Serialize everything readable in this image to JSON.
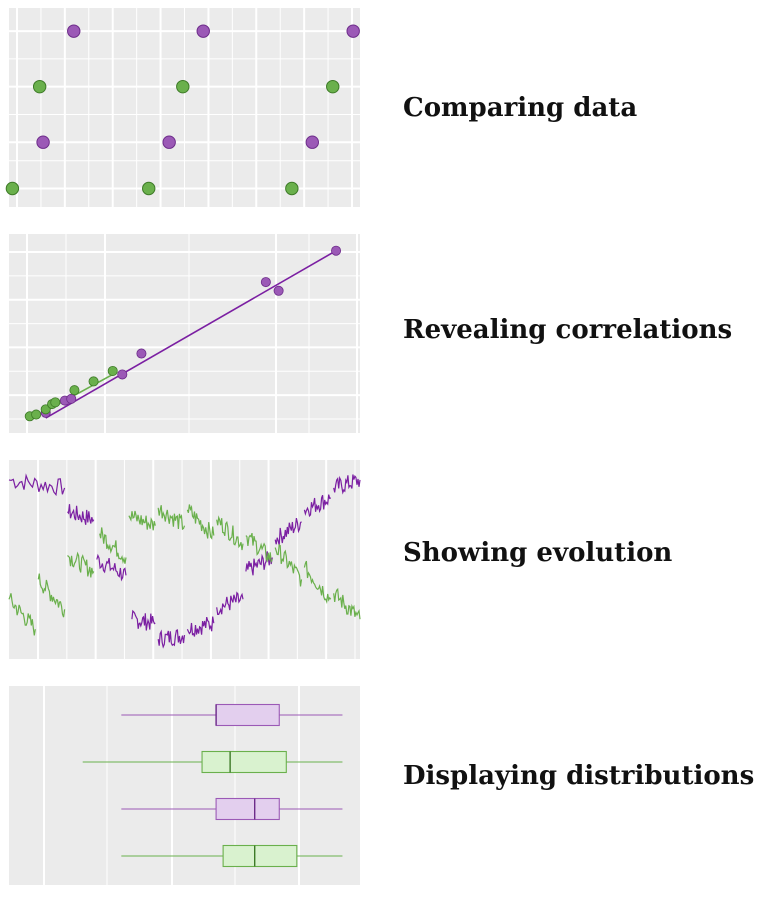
{
  "colors": {
    "panel_bg": "#ebebeb",
    "grid": "#ffffff",
    "purple": "#9b59b6",
    "purple_dark": "#6d2c8a",
    "purple_line": "#7b1fa2",
    "green": "#6ab04c",
    "green_dark": "#3d7a27",
    "purple_fill": "#e3cfee",
    "green_fill": "#d9f2cf"
  },
  "captions": {
    "comparing": "Comparing data",
    "correlations": "Revealing correlations",
    "evolution": "Showing evolution",
    "distributions": "Displaying distributions"
  },
  "chart_data": [
    {
      "type": "scatter",
      "title": "",
      "xlim": [
        0,
        10.3
      ],
      "ylim": [
        0.6,
        4.9
      ],
      "grid": true,
      "series": [
        {
          "color": "purple",
          "points": [
            [
              1.9,
              4.4
            ],
            [
              1.0,
              2.0
            ],
            [
              5.7,
              4.4
            ],
            [
              4.7,
              2.0
            ],
            [
              10.1,
              4.4
            ],
            [
              8.9,
              2.0
            ]
          ]
        },
        {
          "color": "green",
          "points": [
            [
              0.9,
              3.2
            ],
            [
              0.1,
              1.0
            ],
            [
              5.1,
              3.2
            ],
            [
              4.1,
              1.0
            ],
            [
              9.5,
              3.2
            ],
            [
              8.3,
              1.0
            ]
          ]
        }
      ]
    },
    {
      "type": "scatter",
      "title": "",
      "xlim": [
        0,
        10.5
      ],
      "ylim": [
        0,
        10.5
      ],
      "grid": true,
      "trend_lines": [
        {
          "color": "purple_line",
          "from": [
            0.9,
            0.4
          ],
          "to": [
            10.0,
            10.0
          ]
        },
        {
          "color": "green",
          "from": [
            0.4,
            0.3
          ],
          "to": [
            3.1,
            3.0
          ]
        }
      ],
      "series": [
        {
          "color": "purple",
          "points": [
            [
              0.9,
              0.7
            ],
            [
              1.5,
              1.4
            ],
            [
              1.7,
              1.5
            ],
            [
              3.3,
              2.9
            ],
            [
              3.9,
              4.1
            ],
            [
              7.8,
              8.2
            ],
            [
              8.2,
              7.7
            ],
            [
              10.0,
              10.0
            ]
          ]
        },
        {
          "color": "green",
          "points": [
            [
              0.4,
              0.5
            ],
            [
              0.6,
              0.6
            ],
            [
              0.9,
              0.9
            ],
            [
              1.1,
              1.2
            ],
            [
              1.2,
              1.3
            ],
            [
              1.8,
              2.0
            ],
            [
              2.4,
              2.5
            ],
            [
              3.0,
              3.1
            ]
          ]
        }
      ]
    },
    {
      "type": "line",
      "title": "",
      "xlim": [
        0,
        12
      ],
      "ylim": [
        0,
        10
      ],
      "grid": true,
      "series": [
        {
          "color": "purple_line",
          "segments": [
            [
              [
                0,
                9.0
              ],
              [
                1.9,
                8.6
              ]
            ],
            [
              [
                2.0,
                7.4
              ],
              [
                2.9,
                7.0
              ]
            ],
            [
              [
                3.0,
                5.0
              ],
              [
                4.0,
                4.2
              ]
            ],
            [
              [
                4.2,
                2.0
              ],
              [
                5.0,
                1.8
              ]
            ],
            [
              [
                5.1,
                1.0
              ],
              [
                6.0,
                1.2
              ]
            ],
            [
              [
                6.1,
                1.5
              ],
              [
                7.0,
                1.8
              ]
            ],
            [
              [
                7.1,
                2.6
              ],
              [
                8.0,
                3.0
              ]
            ],
            [
              [
                8.1,
                4.4
              ],
              [
                9.0,
                5.1
              ]
            ],
            [
              [
                9.1,
                6.0
              ],
              [
                10.0,
                6.9
              ]
            ],
            [
              [
                10.1,
                7.5
              ],
              [
                11.0,
                8.1
              ]
            ],
            [
              [
                11.1,
                8.6
              ],
              [
                12.0,
                9.0
              ]
            ]
          ]
        },
        {
          "color": "green",
          "segments": [
            [
              [
                0,
                3.0
              ],
              [
                0.9,
                1.5
              ]
            ],
            [
              [
                1.0,
                4.0
              ],
              [
                1.9,
                2.5
              ]
            ],
            [
              [
                2.0,
                5.2
              ],
              [
                2.9,
                4.4
              ]
            ],
            [
              [
                3.1,
                6.3
              ],
              [
                4.0,
                5.1
              ]
            ],
            [
              [
                4.1,
                7.2
              ],
              [
                5.0,
                6.7
              ]
            ],
            [
              [
                5.1,
                7.6
              ],
              [
                6.0,
                6.7
              ]
            ],
            [
              [
                6.1,
                7.5
              ],
              [
                7.0,
                6.2
              ]
            ],
            [
              [
                7.1,
                7.0
              ],
              [
                8.0,
                5.8
              ]
            ],
            [
              [
                8.1,
                6.2
              ],
              [
                9.0,
                5.0
              ]
            ],
            [
              [
                9.1,
                5.6
              ],
              [
                10.0,
                4.0
              ]
            ],
            [
              [
                10.1,
                4.6
              ],
              [
                11.0,
                3.0
              ]
            ],
            [
              [
                11.1,
                3.3
              ],
              [
                12.0,
                2.0
              ]
            ]
          ]
        }
      ]
    },
    {
      "type": "box",
      "title": "",
      "xlim": [
        0,
        10
      ],
      "grid": true,
      "boxes": [
        {
          "color": "purple",
          "min": 3.2,
          "q1": 5.9,
          "median": 5.9,
          "q3": 7.7,
          "max": 9.5
        },
        {
          "color": "green",
          "min": 2.1,
          "q1": 5.5,
          "median": 6.3,
          "q3": 7.9,
          "max": 9.5
        },
        {
          "color": "purple",
          "min": 3.2,
          "q1": 5.9,
          "median": 7.0,
          "q3": 7.7,
          "max": 9.5
        },
        {
          "color": "green",
          "min": 3.2,
          "q1": 6.1,
          "median": 7.0,
          "q3": 8.2,
          "max": 9.5
        }
      ]
    }
  ]
}
